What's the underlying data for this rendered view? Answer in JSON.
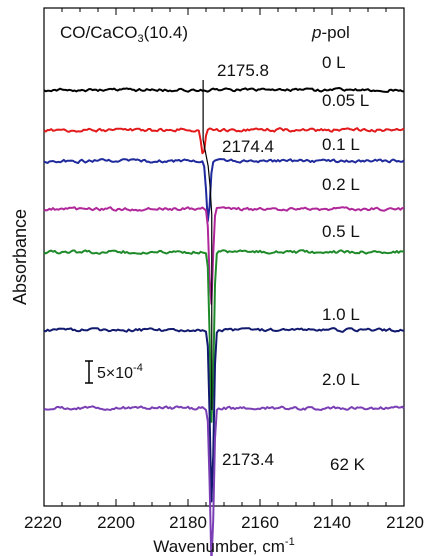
{
  "chart_data": {
    "type": "line",
    "title_main": "CO/CaCO",
    "title_sub": "3",
    "title_tail": "(10.4)",
    "pol_italic": "p",
    "pol_rest": "-pol",
    "xlabel": "Wavenumber, cm",
    "xlabel_sup": "-1",
    "ylabel": "Absorbance",
    "xlim": [
      2220,
      2120
    ],
    "x_ticks": [
      2220,
      2200,
      2180,
      2160,
      2140,
      2120
    ],
    "temperature": "62 K",
    "scale_bar": {
      "label": "5×10",
      "label_sup": "-4",
      "magnitude": 0.0005
    },
    "peak_labels": [
      {
        "text": "2175.8",
        "x": 2175.8
      },
      {
        "text": "2174.4",
        "x": 2174.4
      },
      {
        "text": "2173.4",
        "x": 2173.4
      }
    ],
    "series": [
      {
        "name": "0 L",
        "color": "#000000",
        "peak_x": 2175.8,
        "depth": 0.0,
        "noise": 1.4
      },
      {
        "name": "0.05 L",
        "color": "#e31a1c",
        "peak_x": 2175.8,
        "depth": 0.14,
        "noise": 1.6
      },
      {
        "name": "0.1 L",
        "color": "#1f2a9c",
        "peak_x": 2174.4,
        "depth": 0.35,
        "noise": 1.5
      },
      {
        "name": "0.2 L",
        "color": "#b0279a",
        "peak_x": 2173.6,
        "depth": 0.55,
        "noise": 1.5
      },
      {
        "name": "0.5 L",
        "color": "#1f8a2a",
        "peak_x": 2173.4,
        "depth": 1.0,
        "noise": 1.5
      },
      {
        "name": "1.0 L",
        "color": "#111a6e",
        "peak_x": 2173.4,
        "depth": 1.0,
        "noise": 1.4
      },
      {
        "name": "2.0 L",
        "color": "#7b3fb5",
        "peak_x": 2173.4,
        "depth": 0.9,
        "noise": 1.5
      }
    ]
  }
}
